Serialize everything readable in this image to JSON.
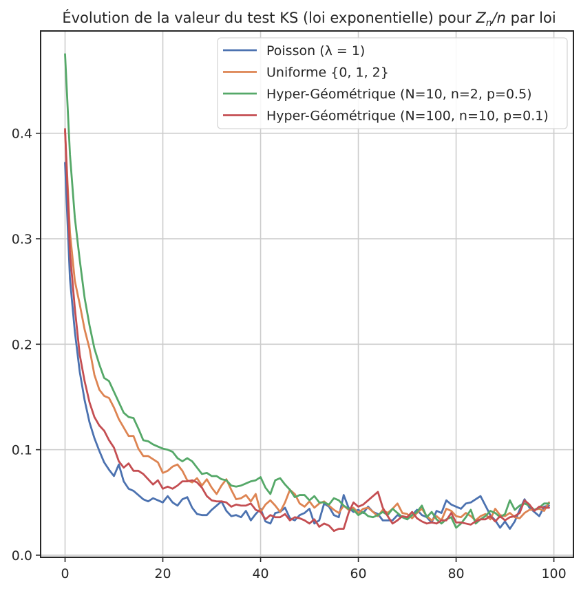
{
  "chart_data": {
    "type": "line",
    "title_prefix": "Évolution de la valeur du test KS (loi exponentielle) pour ",
    "title_math": "Zn/n",
    "title_suffix": " par loi",
    "xlabel": "",
    "ylabel": "",
    "xlim": [
      -5,
      104
    ],
    "ylim": [
      -0.002,
      0.497
    ],
    "xticks": [
      0,
      20,
      40,
      60,
      80,
      100
    ],
    "yticks": [
      0.0,
      0.1,
      0.2,
      0.3,
      0.4
    ],
    "xtick_labels": [
      "0",
      "20",
      "40",
      "60",
      "80",
      "100"
    ],
    "ytick_labels": [
      "0.0",
      "0.1",
      "0.2",
      "0.3",
      "0.4"
    ],
    "grid": true,
    "legend_position": "top-right",
    "x_start": 0,
    "series": [
      {
        "name": "Poisson (λ = 1)",
        "color": "#4c72b0",
        "values": [
          0.372,
          0.262,
          0.212,
          0.174,
          0.147,
          0.126,
          0.111,
          0.099,
          0.088,
          0.081,
          0.075,
          0.086,
          0.07,
          0.063,
          0.061,
          0.057,
          0.053,
          0.051,
          0.054,
          0.052,
          0.05,
          0.056,
          0.05,
          0.047,
          0.053,
          0.055,
          0.045,
          0.039,
          0.038,
          0.038,
          0.043,
          0.047,
          0.051,
          0.042,
          0.037,
          0.038,
          0.036,
          0.042,
          0.033,
          0.039,
          0.044,
          0.032,
          0.03,
          0.04,
          0.041,
          0.045,
          0.035,
          0.033,
          0.038,
          0.04,
          0.044,
          0.03,
          0.033,
          0.049,
          0.046,
          0.038,
          0.036,
          0.057,
          0.045,
          0.041,
          0.043,
          0.04,
          0.046,
          0.041,
          0.039,
          0.033,
          0.033,
          0.033,
          0.038,
          0.036,
          0.034,
          0.038,
          0.043,
          0.038,
          0.036,
          0.031,
          0.042,
          0.04,
          0.052,
          0.048,
          0.046,
          0.044,
          0.049,
          0.05,
          0.053,
          0.056,
          0.047,
          0.038,
          0.033,
          0.026,
          0.032,
          0.025,
          0.032,
          0.043,
          0.053,
          0.045,
          0.041,
          0.037,
          0.046,
          0.047
        ]
      },
      {
        "name": "Uniforme {0, 1, 2}",
        "color": "#dd8452",
        "values": [
          0.402,
          0.306,
          0.26,
          0.238,
          0.214,
          0.196,
          0.171,
          0.157,
          0.151,
          0.149,
          0.14,
          0.129,
          0.121,
          0.113,
          0.113,
          0.101,
          0.094,
          0.094,
          0.091,
          0.088,
          0.078,
          0.08,
          0.084,
          0.086,
          0.08,
          0.071,
          0.069,
          0.073,
          0.066,
          0.072,
          0.064,
          0.058,
          0.066,
          0.072,
          0.062,
          0.053,
          0.054,
          0.057,
          0.051,
          0.058,
          0.041,
          0.048,
          0.052,
          0.047,
          0.041,
          0.05,
          0.062,
          0.058,
          0.049,
          0.046,
          0.051,
          0.045,
          0.049,
          0.051,
          0.047,
          0.043,
          0.04,
          0.047,
          0.043,
          0.045,
          0.04,
          0.044,
          0.045,
          0.041,
          0.037,
          0.043,
          0.04,
          0.044,
          0.049,
          0.04,
          0.039,
          0.035,
          0.04,
          0.044,
          0.037,
          0.033,
          0.037,
          0.033,
          0.044,
          0.042,
          0.037,
          0.036,
          0.04,
          0.037,
          0.033,
          0.037,
          0.039,
          0.034,
          0.044,
          0.038,
          0.037,
          0.04,
          0.036,
          0.035,
          0.04,
          0.043,
          0.043,
          0.044,
          0.042,
          0.05
        ]
      },
      {
        "name": "Hyper-Géométrique (N=10, n=2, p=0.5)",
        "color": "#55a868",
        "values": [
          0.475,
          0.38,
          0.32,
          0.28,
          0.244,
          0.218,
          0.196,
          0.181,
          0.168,
          0.165,
          0.155,
          0.145,
          0.135,
          0.131,
          0.13,
          0.12,
          0.109,
          0.108,
          0.105,
          0.103,
          0.101,
          0.1,
          0.098,
          0.092,
          0.089,
          0.092,
          0.089,
          0.083,
          0.077,
          0.078,
          0.075,
          0.075,
          0.072,
          0.071,
          0.066,
          0.065,
          0.066,
          0.068,
          0.07,
          0.071,
          0.074,
          0.064,
          0.058,
          0.071,
          0.073,
          0.067,
          0.062,
          0.055,
          0.057,
          0.057,
          0.052,
          0.056,
          0.05,
          0.05,
          0.048,
          0.054,
          0.052,
          0.047,
          0.044,
          0.043,
          0.038,
          0.041,
          0.037,
          0.036,
          0.038,
          0.041,
          0.038,
          0.044,
          0.04,
          0.036,
          0.034,
          0.038,
          0.041,
          0.047,
          0.036,
          0.041,
          0.034,
          0.03,
          0.034,
          0.036,
          0.026,
          0.03,
          0.036,
          0.043,
          0.03,
          0.034,
          0.037,
          0.042,
          0.04,
          0.036,
          0.039,
          0.052,
          0.043,
          0.047,
          0.049,
          0.047,
          0.043,
          0.045,
          0.049,
          0.049
        ]
      },
      {
        "name": "Hyper-Géométrique (N=100, n=10, p=0.1)",
        "color": "#c44e52",
        "values": [
          0.404,
          0.287,
          0.234,
          0.19,
          0.165,
          0.145,
          0.131,
          0.123,
          0.118,
          0.109,
          0.102,
          0.089,
          0.083,
          0.087,
          0.08,
          0.08,
          0.077,
          0.072,
          0.067,
          0.071,
          0.063,
          0.065,
          0.063,
          0.066,
          0.07,
          0.07,
          0.071,
          0.069,
          0.064,
          0.056,
          0.052,
          0.051,
          0.051,
          0.05,
          0.046,
          0.048,
          0.047,
          0.047,
          0.049,
          0.043,
          0.041,
          0.034,
          0.038,
          0.036,
          0.036,
          0.039,
          0.033,
          0.036,
          0.035,
          0.033,
          0.03,
          0.034,
          0.027,
          0.03,
          0.028,
          0.023,
          0.025,
          0.025,
          0.04,
          0.05,
          0.046,
          0.048,
          0.052,
          0.056,
          0.06,
          0.045,
          0.037,
          0.03,
          0.033,
          0.037,
          0.036,
          0.041,
          0.035,
          0.032,
          0.03,
          0.031,
          0.03,
          0.033,
          0.033,
          0.04,
          0.031,
          0.031,
          0.03,
          0.029,
          0.032,
          0.034,
          0.034,
          0.037,
          0.032,
          0.037,
          0.033,
          0.036,
          0.037,
          0.04,
          0.052,
          0.048,
          0.042,
          0.046,
          0.045,
          0.045
        ]
      }
    ]
  }
}
